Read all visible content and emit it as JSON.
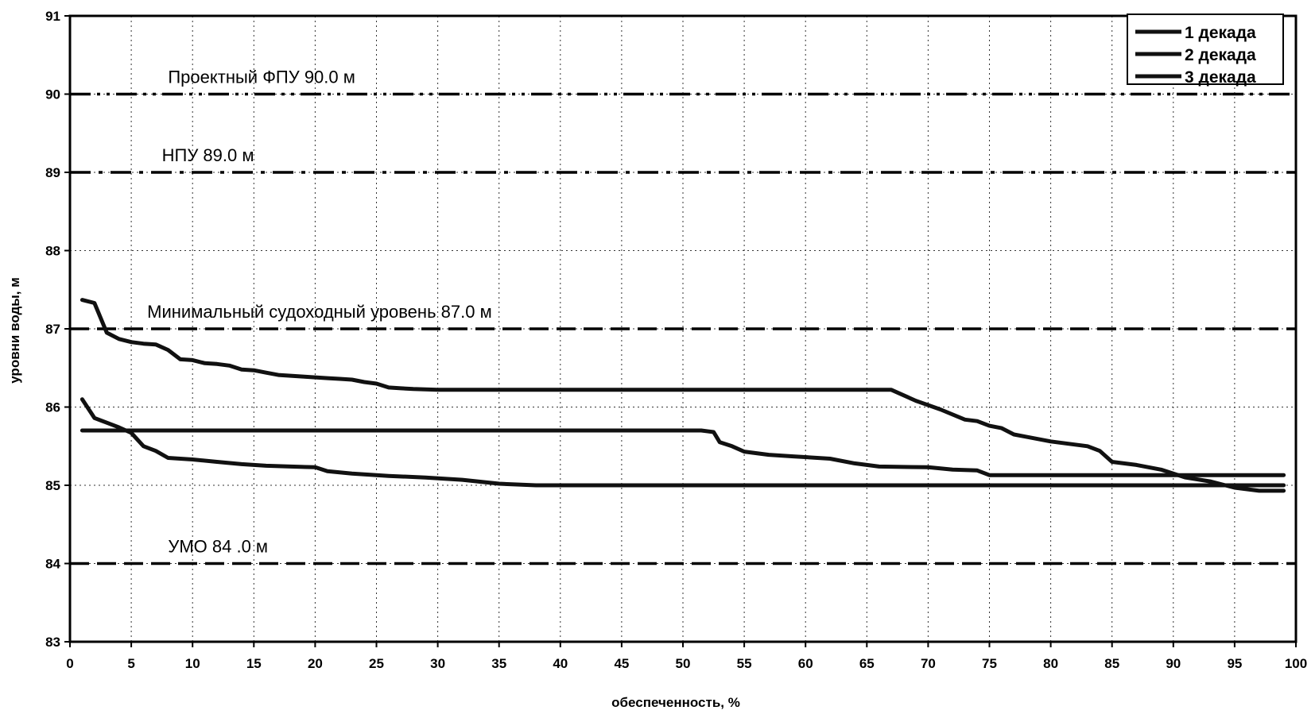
{
  "chart_data": {
    "type": "line",
    "xlabel": "обеспеченность, %",
    "ylabel": "уровни воды, м",
    "xlim": [
      0,
      100
    ],
    "ylim": [
      83,
      91
    ],
    "xticks": [
      0,
      5,
      10,
      15,
      20,
      25,
      30,
      35,
      40,
      45,
      50,
      55,
      60,
      65,
      70,
      75,
      80,
      85,
      90,
      95,
      100
    ],
    "yticks": [
      83,
      84,
      85,
      86,
      87,
      88,
      89,
      90,
      91
    ],
    "grid": "dotted",
    "legend_position": "top-right",
    "reference_lines": [
      {
        "label": "Проектный ФПУ 90.0 м",
        "y": 90.0,
        "style": "dash-dot-dot",
        "label_x": 8
      },
      {
        "label": "НПУ 89.0 м",
        "y": 89.0,
        "style": "dash-dot",
        "label_x": 7.5
      },
      {
        "label": "Минимальный судоходный уровень 87.0 м",
        "y": 87.0,
        "style": "dashed",
        "label_x": 6.3
      },
      {
        "label": "УМО 84 .0 м",
        "y": 84.0,
        "style": "dashed",
        "label_x": 8
      }
    ],
    "series": [
      {
        "name": "1 декада",
        "color": "#111111",
        "x": [
          1,
          2,
          3,
          4,
          5,
          6,
          7,
          8,
          9,
          10,
          11,
          12,
          13,
          14,
          15,
          16,
          17,
          18,
          19,
          20,
          21,
          22,
          23,
          24,
          25,
          26,
          27,
          28,
          30,
          35,
          40,
          45,
          50,
          55,
          60,
          65,
          67,
          69,
          71,
          73,
          74,
          75,
          76,
          77,
          78,
          80,
          82,
          83,
          84,
          85,
          87,
          89,
          91,
          93,
          95,
          97,
          99
        ],
        "y": [
          87.37,
          87.33,
          86.95,
          86.87,
          86.83,
          86.81,
          86.8,
          86.73,
          86.61,
          86.6,
          86.56,
          86.55,
          86.53,
          86.48,
          86.47,
          86.44,
          86.41,
          86.4,
          86.39,
          86.38,
          86.37,
          86.36,
          86.35,
          86.32,
          86.3,
          86.25,
          86.24,
          86.23,
          86.22,
          86.22,
          86.22,
          86.22,
          86.22,
          86.22,
          86.22,
          86.22,
          86.22,
          86.08,
          85.97,
          85.84,
          85.82,
          85.76,
          85.73,
          85.65,
          85.62,
          85.56,
          85.52,
          85.5,
          85.44,
          85.3,
          85.26,
          85.2,
          85.1,
          85.05,
          84.97,
          84.93,
          84.93
        ]
      },
      {
        "name": "2 декада",
        "color": "#111111",
        "x": [
          1,
          10,
          20,
          30,
          40,
          45,
          50,
          51.5,
          52.5,
          53,
          54,
          55,
          57,
          59,
          62,
          64,
          66,
          70,
          72,
          74,
          75,
          80,
          85,
          90,
          99
        ],
        "y": [
          85.7,
          85.7,
          85.7,
          85.7,
          85.7,
          85.7,
          85.7,
          85.7,
          85.68,
          85.55,
          85.5,
          85.43,
          85.39,
          85.37,
          85.34,
          85.28,
          85.24,
          85.23,
          85.2,
          85.19,
          85.13,
          85.13,
          85.13,
          85.13,
          85.13
        ]
      },
      {
        "name": "3 декада",
        "color": "#111111",
        "x": [
          1,
          2,
          3,
          4,
          5,
          6,
          7,
          8,
          9,
          10,
          12,
          14,
          16,
          18,
          20,
          21,
          23,
          26,
          29,
          32,
          35,
          38,
          40,
          50,
          60,
          70,
          80,
          90,
          99
        ],
        "y": [
          86.1,
          85.86,
          85.8,
          85.74,
          85.67,
          85.5,
          85.44,
          85.35,
          85.34,
          85.33,
          85.3,
          85.27,
          85.25,
          85.24,
          85.23,
          85.18,
          85.15,
          85.12,
          85.1,
          85.07,
          85.02,
          85.0,
          85.0,
          85.0,
          85.0,
          85.0,
          85.0,
          85.0,
          85.0
        ]
      }
    ]
  }
}
